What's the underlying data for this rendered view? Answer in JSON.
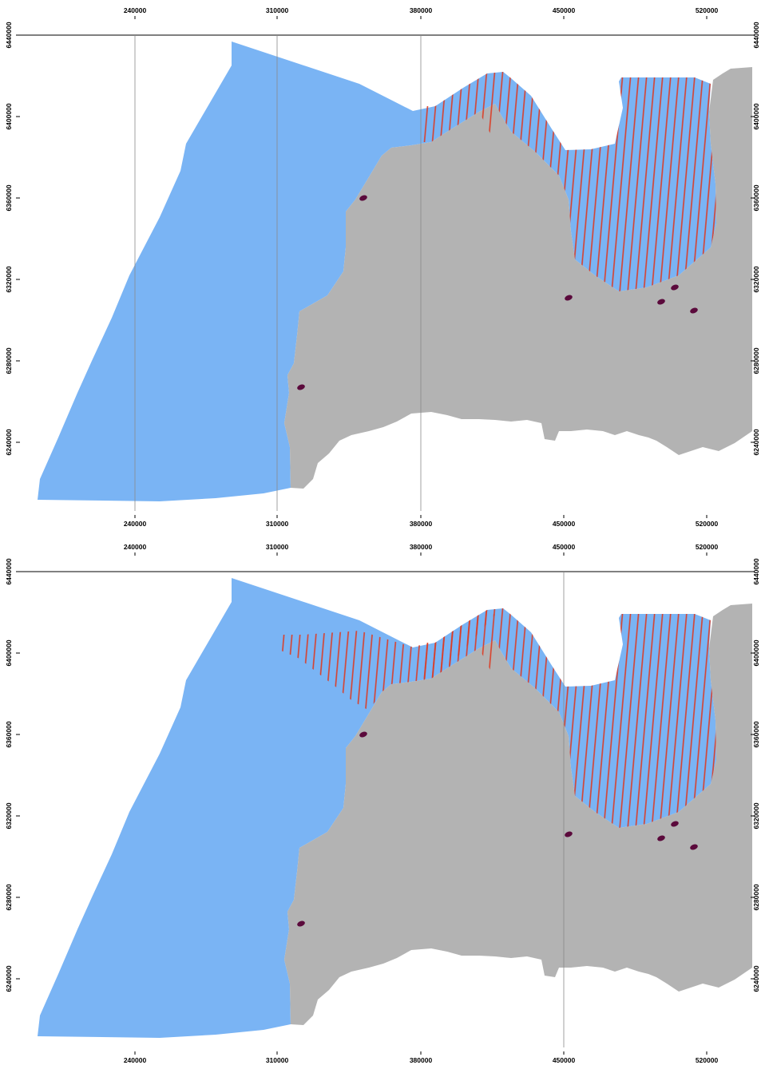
{
  "colors": {
    "sea": "#7ab4f4",
    "land": "#b3b3b3",
    "hatch": "#dc3a22",
    "point": "#5b0a3c",
    "grid": "#8a8a8a",
    "background": "#ffffff"
  },
  "axes": {
    "x_ticks": [
      "240000",
      "310000",
      "380000",
      "450000",
      "520000"
    ],
    "y_ticks": [
      "6440000",
      "6400000",
      "6360000",
      "6320000",
      "6280000",
      "6240000"
    ]
  },
  "panels": [
    {
      "id": "top",
      "visible_gridlines_x": [
        "240000",
        "310000",
        "380000"
      ],
      "hatched_regions": [
        "bay-east"
      ]
    },
    {
      "id": "bottom",
      "visible_gridlines_x": [
        "450000"
      ],
      "hatched_regions": [
        "coast-west",
        "bay-east"
      ]
    }
  ],
  "points_count": 6
}
